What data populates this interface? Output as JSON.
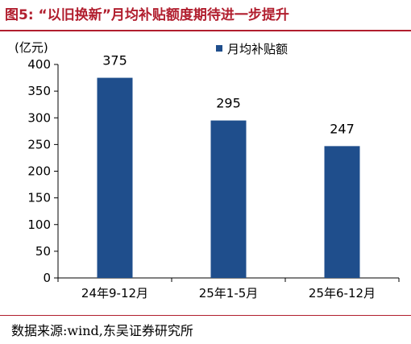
{
  "figure": {
    "title": "图5:  “以旧换新”月均补贴额度期待进一步提升",
    "source": "数据来源:wind,东吴证券研究所"
  },
  "chart_data": {
    "type": "bar",
    "categories": [
      "24年9-12月",
      "25年1-5月",
      "25年6-12月"
    ],
    "series": [
      {
        "name": "月均补贴额",
        "values": [
          375,
          295,
          247
        ],
        "color": "#1f4e8c"
      }
    ],
    "ylabel": "(亿元)",
    "xlabel": "",
    "ylim": [
      0,
      400
    ],
    "yticks": [
      0,
      50,
      100,
      150,
      200,
      250,
      300,
      350,
      400
    ],
    "data_labels": [
      "375",
      "295",
      "247"
    ],
    "legend": "top-right",
    "grid": false
  }
}
